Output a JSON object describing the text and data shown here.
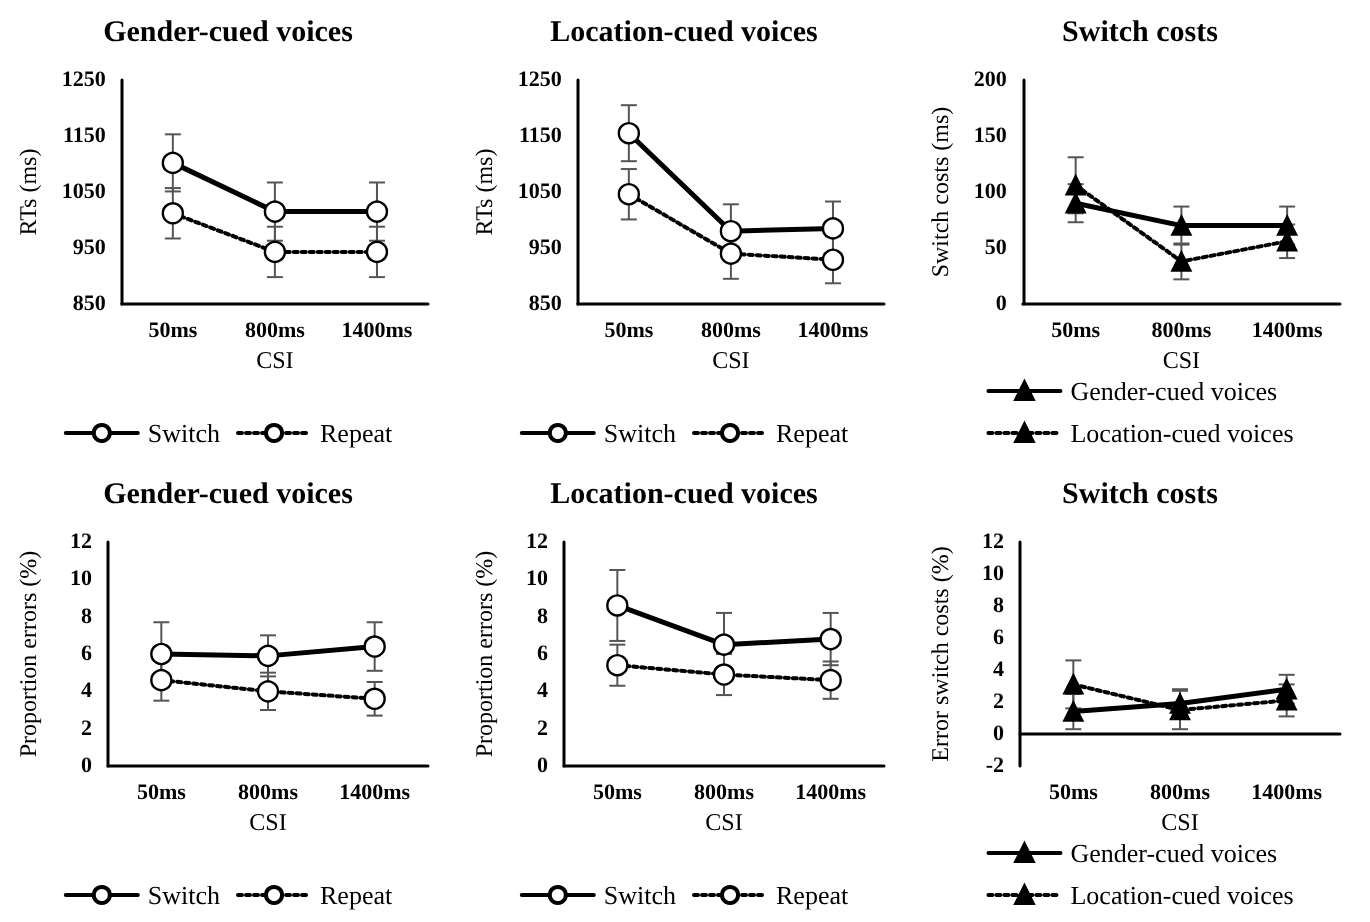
{
  "chart_data": [
    {
      "type": "line",
      "title": "Gender-cued voices",
      "xlabel": "CSI",
      "ylabel": "RTs (ms)",
      "categories": [
        "50ms",
        "800ms",
        "1400ms"
      ],
      "ylim": [
        850,
        1250
      ],
      "yticks": [
        850,
        950,
        1050,
        1150,
        1250
      ],
      "grid": false,
      "legend": "bottom",
      "marker": "circle",
      "series": [
        {
          "name": "Switch",
          "color": "#000000",
          "line_style": "solid",
          "values": [
            1102,
            1015,
            1015
          ],
          "errors": [
            51,
            52,
            52
          ]
        },
        {
          "name": "Repeat",
          "color": "#000000",
          "line_style": "dotted",
          "values": [
            1012,
            943,
            943
          ],
          "errors": [
            45,
            45,
            45
          ]
        }
      ]
    },
    {
      "type": "line",
      "title": "Location-cued voices",
      "xlabel": "CSI",
      "ylabel": "RTs (ms)",
      "categories": [
        "50ms",
        "800ms",
        "1400ms"
      ],
      "ylim": [
        850,
        1250
      ],
      "yticks": [
        850,
        950,
        1050,
        1150,
        1250
      ],
      "grid": false,
      "legend": "bottom",
      "marker": "circle",
      "series": [
        {
          "name": "Switch",
          "color": "#000000",
          "line_style": "solid",
          "values": [
            1155,
            980,
            985
          ],
          "errors": [
            50,
            48,
            48
          ]
        },
        {
          "name": "Repeat",
          "color": "#000000",
          "line_style": "dotted",
          "values": [
            1046,
            940,
            929
          ],
          "errors": [
            45,
            45,
            42
          ]
        }
      ]
    },
    {
      "type": "line",
      "title": "Switch costs",
      "xlabel": "CSI",
      "ylabel": "Switch costs (ms)",
      "categories": [
        "50ms",
        "800ms",
        "1400ms"
      ],
      "ylim": [
        0,
        200
      ],
      "yticks": [
        0,
        50,
        100,
        150,
        200
      ],
      "grid": false,
      "legend": "bottom",
      "marker": "triangle",
      "series": [
        {
          "name": "Gender-cued voices",
          "color": "#000000",
          "line_style": "solid",
          "values": [
            90,
            70,
            70
          ],
          "errors": [
            17,
            17,
            17
          ]
        },
        {
          "name": "Location-cued voices",
          "color": "#000000",
          "line_style": "dotted",
          "values": [
            106,
            38,
            56
          ],
          "errors": [
            25,
            16,
            15
          ]
        }
      ]
    },
    {
      "type": "line",
      "title": "Gender-cued voices",
      "xlabel": "CSI",
      "ylabel": "Proportion errors (%)",
      "categories": [
        "50ms",
        "800ms",
        "1400ms"
      ],
      "ylim": [
        0,
        12
      ],
      "yticks": [
        0,
        2,
        4,
        6,
        8,
        10,
        12
      ],
      "grid": false,
      "legend": "bottom",
      "marker": "circle",
      "series": [
        {
          "name": "Switch",
          "color": "#000000",
          "line_style": "solid",
          "values": [
            6.0,
            5.9,
            6.4
          ],
          "errors": [
            1.7,
            1.1,
            1.3
          ]
        },
        {
          "name": "Repeat",
          "color": "#000000",
          "line_style": "dotted",
          "values": [
            4.6,
            4.0,
            3.6
          ],
          "errors": [
            1.1,
            1.0,
            0.9
          ]
        }
      ]
    },
    {
      "type": "line",
      "title": "Location-cued voices",
      "xlabel": "CSI",
      "ylabel": "Proportion errors (%)",
      "categories": [
        "50ms",
        "800ms",
        "1400ms"
      ],
      "ylim": [
        0,
        12
      ],
      "yticks": [
        0,
        2,
        4,
        6,
        8,
        10,
        12
      ],
      "grid": false,
      "legend": "bottom",
      "marker": "circle",
      "series": [
        {
          "name": "Switch",
          "color": "#000000",
          "line_style": "solid",
          "values": [
            8.6,
            6.5,
            6.8
          ],
          "errors": [
            1.9,
            1.7,
            1.4
          ]
        },
        {
          "name": "Repeat",
          "color": "#000000",
          "line_style": "dotted",
          "values": [
            5.4,
            4.9,
            4.6
          ],
          "errors": [
            1.1,
            1.1,
            1.0
          ]
        }
      ]
    },
    {
      "type": "line",
      "title": "Switch costs",
      "xlabel": "CSI",
      "ylabel": "Error switch costs (%)",
      "categories": [
        "50ms",
        "800ms",
        "1400ms"
      ],
      "ylim": [
        -2,
        12
      ],
      "yticks": [
        -2,
        0,
        2,
        4,
        6,
        8,
        10,
        12
      ],
      "grid": false,
      "legend": "bottom",
      "marker": "triangle",
      "series": [
        {
          "name": "Gender-cued voices",
          "color": "#000000",
          "line_style": "solid",
          "values": [
            1.4,
            1.9,
            2.8
          ],
          "errors": [
            1.1,
            0.9,
            0.9
          ]
        },
        {
          "name": "Location-cued voices",
          "color": "#000000",
          "line_style": "dotted",
          "values": [
            3.1,
            1.5,
            2.1
          ],
          "errors": [
            1.5,
            1.2,
            1.0
          ]
        }
      ]
    }
  ]
}
